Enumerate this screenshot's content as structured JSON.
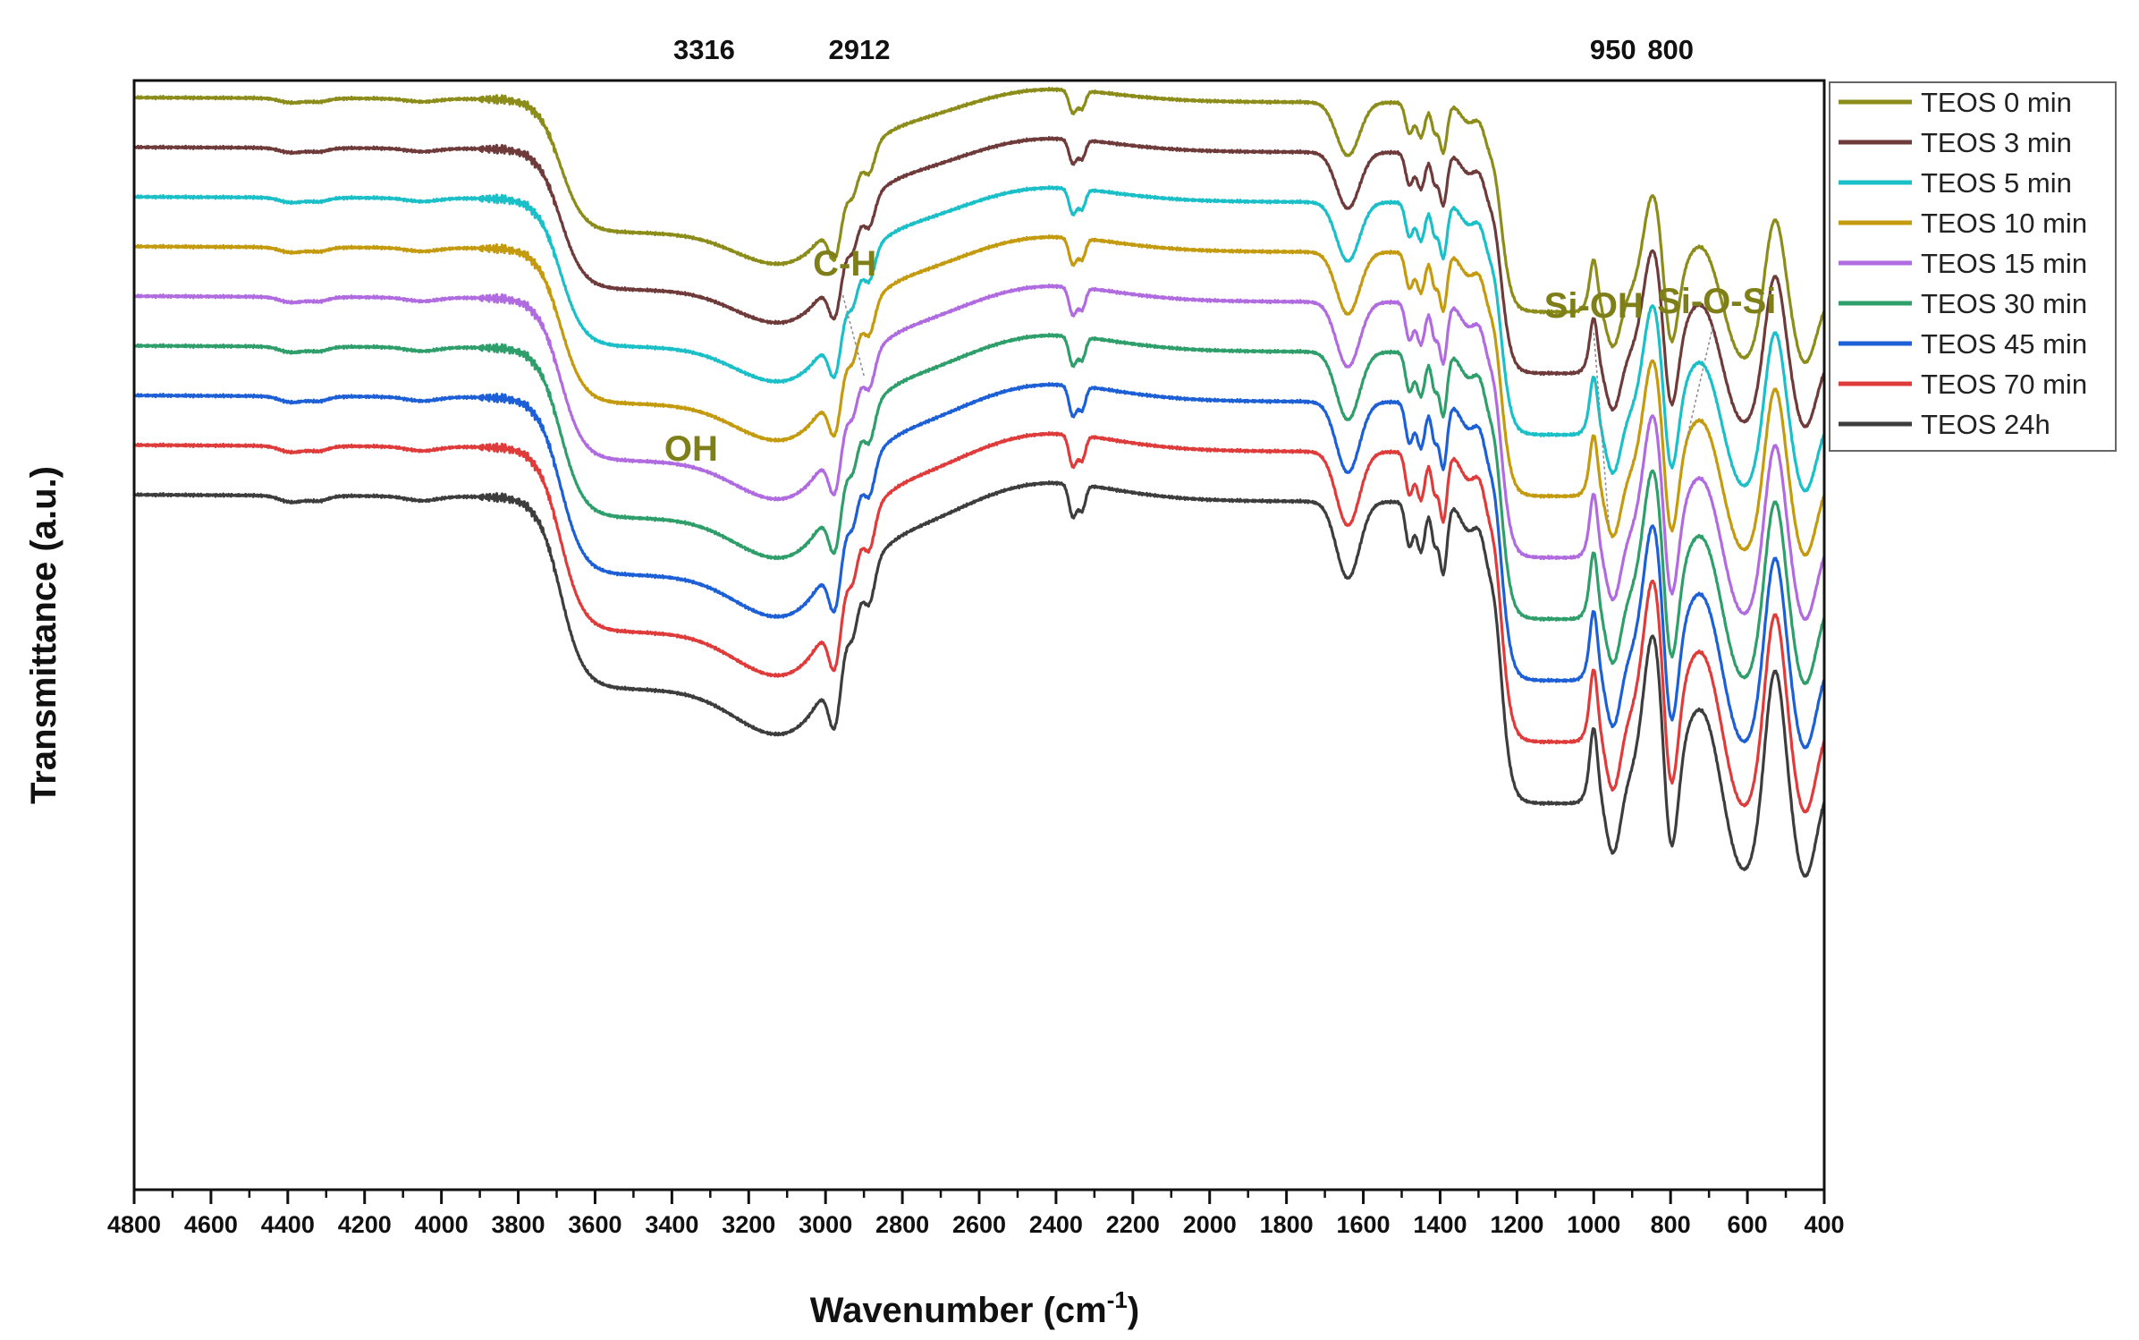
{
  "chart_data": {
    "type": "line",
    "title": "",
    "xlabel": "Wavenumber (cm",
    "xlabel_sup": "-1",
    "xlabel_end": ")",
    "ylabel": "Transmittance (a.u.)",
    "xlim": [
      4800,
      400
    ],
    "x_reversed": true,
    "x_ticks": [
      4800,
      4600,
      4400,
      4200,
      4000,
      3800,
      3600,
      3400,
      3200,
      3000,
      2800,
      2600,
      2400,
      2200,
      2000,
      1800,
      1600,
      1400,
      1200,
      1000,
      800,
      600,
      400
    ],
    "y_ticks_shown": false,
    "top_labels": [
      {
        "text": "3316",
        "x": 3316
      },
      {
        "text": "2912",
        "x": 2912
      },
      {
        "text": "950",
        "x": 950
      },
      {
        "text": "800",
        "x": 800
      }
    ],
    "annotations": [
      {
        "text": "OH",
        "x": 3350
      },
      {
        "text": "C-H",
        "x": 2950
      },
      {
        "text": "Si-OH",
        "x": 1000
      },
      {
        "text": "Si-O-Si",
        "x": 680
      }
    ],
    "annotation_color": "#7f7f1a",
    "legend_position": "top-right",
    "series": [
      {
        "name": "TEOS 0 min",
        "color": "#8c8c1a",
        "offset": 0
      },
      {
        "name": "TEOS 3 min",
        "color": "#6e3a3a",
        "offset": 1
      },
      {
        "name": "TEOS 5 min",
        "color": "#1bbfc8",
        "offset": 2
      },
      {
        "name": "TEOS 10 min",
        "color": "#c49a0e",
        "offset": 3
      },
      {
        "name": "TEOS 15 min",
        "color": "#b06be0",
        "offset": 4
      },
      {
        "name": "TEOS 30 min",
        "color": "#2e9e6a",
        "offset": 5
      },
      {
        "name": "TEOS 45 min",
        "color": "#1c5fd6",
        "offset": 6
      },
      {
        "name": "TEOS 70 min",
        "color": "#e03b3b",
        "offset": 7
      },
      {
        "name": "TEOS 24h",
        "color": "#3d3d3d",
        "offset": 8
      }
    ]
  }
}
